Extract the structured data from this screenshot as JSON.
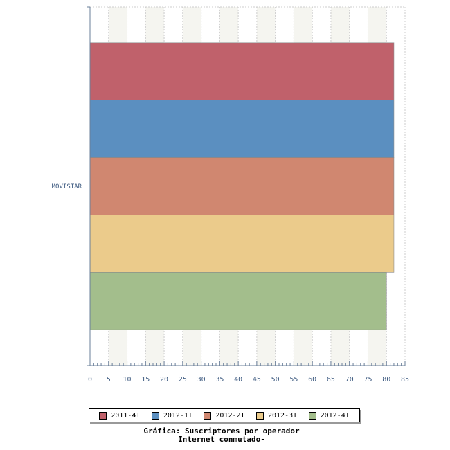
{
  "chart_data": {
    "type": "bar",
    "orientation": "horizontal",
    "categories": [
      "MOVISTAR"
    ],
    "series": [
      {
        "name": "2011-4T",
        "color": "#c0616b",
        "values": [
          82
        ]
      },
      {
        "name": "2012-1T",
        "color": "#5b8fc0",
        "values": [
          82
        ]
      },
      {
        "name": "2012-2T",
        "color": "#d08770",
        "values": [
          82
        ]
      },
      {
        "name": "2012-3T",
        "color": "#ebcb8b",
        "values": [
          82
        ]
      },
      {
        "name": "2012-4T",
        "color": "#a3be8c",
        "values": [
          80
        ]
      }
    ],
    "xlim": [
      0,
      85
    ],
    "xticks": [
      "0",
      "5",
      "10",
      "15",
      "20",
      "25",
      "30",
      "35",
      "40",
      "45",
      "50",
      "55",
      "60",
      "65",
      "70",
      "75",
      "80",
      "85"
    ],
    "grid": true,
    "legend_position": "bottom",
    "title_lines": [
      "Gráfica: Suscriptores por operador",
      "Internet conmutado-"
    ]
  }
}
